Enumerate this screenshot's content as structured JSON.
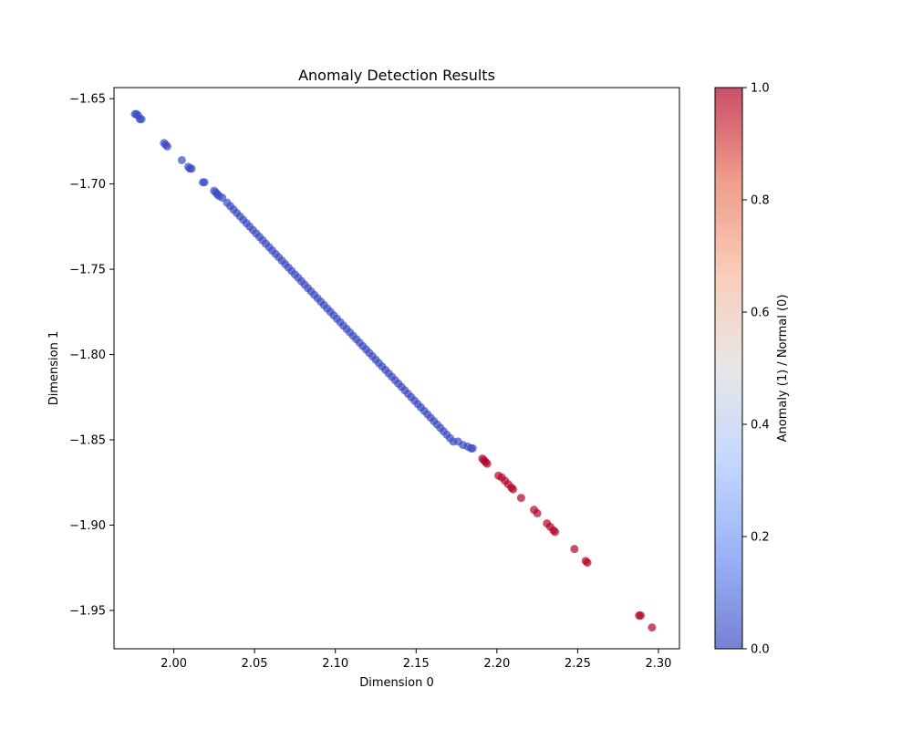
{
  "chart_data": {
    "type": "scatter",
    "title": "Anomaly Detection Results",
    "xlabel": "Dimension 0",
    "ylabel": "Dimension 1",
    "xlim": [
      1.963,
      2.313
    ],
    "ylim": [
      -1.9725,
      -1.6435
    ],
    "xticks": [
      2.0,
      2.05,
      2.1,
      2.15,
      2.2,
      2.25,
      2.3
    ],
    "xtick_labels": [
      "2.00",
      "2.05",
      "2.10",
      "2.15",
      "2.20",
      "2.25",
      "2.30"
    ],
    "yticks": [
      -1.65,
      -1.7,
      -1.75,
      -1.8,
      -1.85,
      -1.9,
      -1.95
    ],
    "ytick_labels": [
      "−1.65",
      "−1.70",
      "−1.75",
      "−1.80",
      "−1.85",
      "−1.90",
      "−1.95"
    ],
    "grid": false,
    "colorbar": {
      "label": "Anomaly (1) / Normal (0)",
      "range": [
        0,
        1
      ],
      "ticks": [
        0,
        0.2,
        0.4,
        0.6,
        0.8,
        1.0
      ],
      "tick_labels": [
        "0.0",
        "0.2",
        "0.4",
        "0.6",
        "0.8",
        "1.0"
      ],
      "colormap": "coolwarm",
      "colormap_stops": [
        "#3b4cc0",
        "#6f92f3",
        "#aac7fd",
        "#dddddd",
        "#f7b89c",
        "#e7745b",
        "#b40426"
      ]
    },
    "marker_alpha": 0.7,
    "normal": {
      "label_value": 0,
      "color": "#3b4cc0",
      "x": [
        1.976,
        1.977,
        1.978,
        1.979,
        1.98,
        1.994,
        1.995,
        1.996,
        2.005,
        2.009,
        2.01,
        2.011,
        2.018,
        2.019,
        2.025,
        2.026,
        2.027,
        2.028,
        2.03,
        2.033,
        2.035,
        2.037,
        2.039,
        2.041,
        2.043,
        2.045,
        2.047,
        2.049,
        2.051,
        2.053,
        2.055,
        2.057,
        2.059,
        2.061,
        2.063,
        2.065,
        2.067,
        2.069,
        2.071,
        2.073,
        2.075,
        2.077,
        2.079,
        2.081,
        2.083,
        2.085,
        2.087,
        2.089,
        2.091,
        2.093,
        2.095,
        2.097,
        2.099,
        2.101,
        2.103,
        2.105,
        2.107,
        2.109,
        2.111,
        2.113,
        2.115,
        2.117,
        2.119,
        2.121,
        2.123,
        2.125,
        2.127,
        2.129,
        2.131,
        2.133,
        2.135,
        2.137,
        2.139,
        2.141,
        2.143,
        2.145,
        2.147,
        2.149,
        2.151,
        2.153,
        2.155,
        2.157,
        2.159,
        2.161,
        2.163,
        2.165,
        2.167,
        2.169,
        2.171,
        2.173,
        2.176,
        2.179,
        2.182,
        2.184,
        2.185
      ],
      "y": [
        -1.659,
        -1.659,
        -1.66,
        -1.662,
        -1.662,
        -1.676,
        -1.677,
        -1.678,
        -1.686,
        -1.69,
        -1.691,
        -1.691,
        -1.699,
        -1.699,
        -1.704,
        -1.705,
        -1.706,
        -1.707,
        -1.708,
        -1.711,
        -1.713,
        -1.715,
        -1.717,
        -1.719,
        -1.721,
        -1.723,
        -1.725,
        -1.727,
        -1.729,
        -1.731,
        -1.733,
        -1.735,
        -1.737,
        -1.739,
        -1.741,
        -1.743,
        -1.745,
        -1.747,
        -1.749,
        -1.751,
        -1.753,
        -1.755,
        -1.757,
        -1.759,
        -1.761,
        -1.763,
        -1.765,
        -1.767,
        -1.769,
        -1.771,
        -1.773,
        -1.775,
        -1.777,
        -1.779,
        -1.781,
        -1.783,
        -1.785,
        -1.787,
        -1.789,
        -1.791,
        -1.793,
        -1.795,
        -1.797,
        -1.799,
        -1.801,
        -1.803,
        -1.805,
        -1.807,
        -1.809,
        -1.811,
        -1.813,
        -1.815,
        -1.817,
        -1.819,
        -1.821,
        -1.823,
        -1.825,
        -1.827,
        -1.829,
        -1.831,
        -1.833,
        -1.835,
        -1.837,
        -1.839,
        -1.841,
        -1.843,
        -1.845,
        -1.847,
        -1.849,
        -1.851,
        -1.851,
        -1.853,
        -1.854,
        -1.855,
        -1.855
      ]
    },
    "anomaly": {
      "label_value": 1,
      "color": "#b40426",
      "x": [
        2.191,
        2.192,
        2.193,
        2.194,
        2.201,
        2.203,
        2.205,
        2.207,
        2.209,
        2.21,
        2.215,
        2.223,
        2.225,
        2.231,
        2.233,
        2.235,
        2.236,
        2.248,
        2.255,
        2.256,
        2.288,
        2.289,
        2.296
      ],
      "y": [
        -1.861,
        -1.862,
        -1.863,
        -1.864,
        -1.871,
        -1.872,
        -1.874,
        -1.876,
        -1.878,
        -1.879,
        -1.884,
        -1.891,
        -1.893,
        -1.899,
        -1.901,
        -1.903,
        -1.904,
        -1.914,
        -1.921,
        -1.922,
        -1.953,
        -1.953,
        -1.96
      ]
    }
  }
}
